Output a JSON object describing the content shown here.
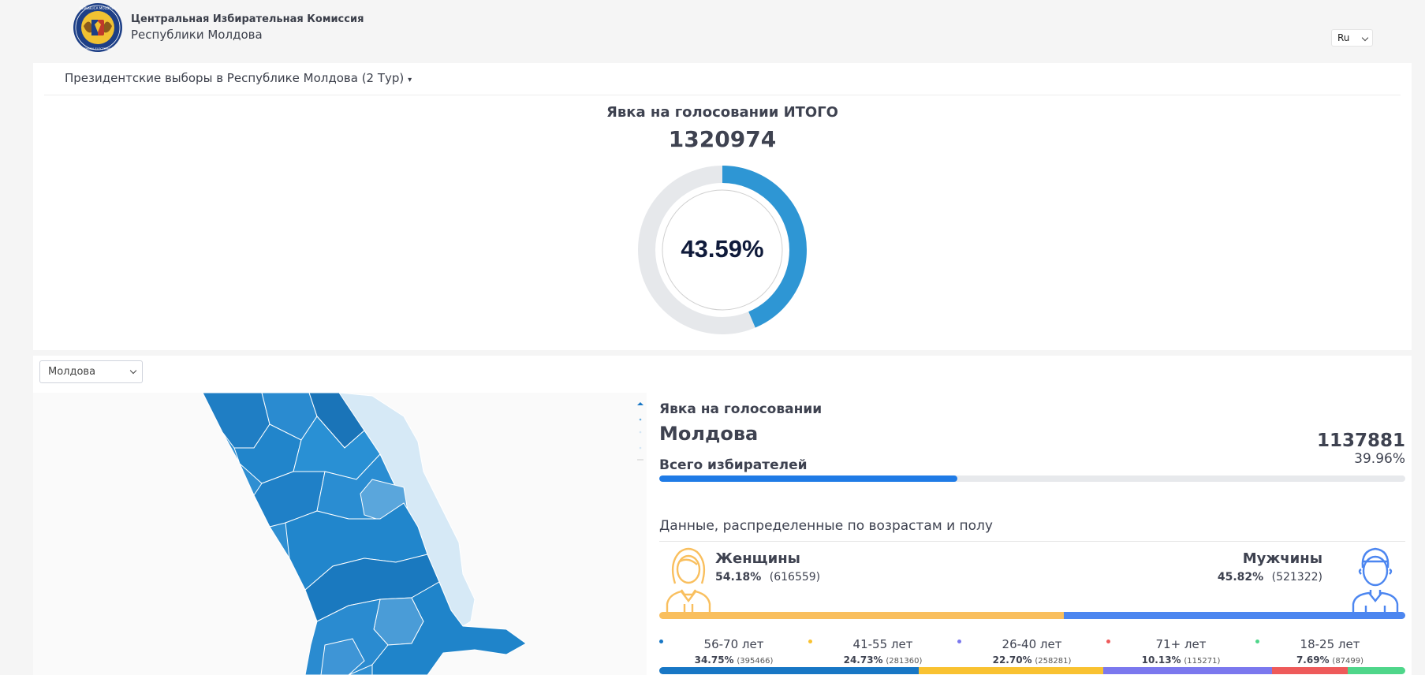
{
  "header": {
    "org_line1": "Центральная Избирательная Комиссия",
    "org_line2": "Республики Молдова",
    "logo_text": "REPUBLICA MOLDOVA · COMISIA ELECTORALĂ CENTRALĂ",
    "language": "Ru"
  },
  "election": {
    "title": "Президентские выборы в Республике Молдова (2 Тур)"
  },
  "total_turnout": {
    "title": "Явка на голосовании ИТОГО",
    "count": "1320974",
    "percent_label": "43.59%",
    "percent": 43.59,
    "colors": {
      "fill": "#2e96d4",
      "track": "#e6e8eb"
    }
  },
  "region": {
    "selected": "Молдова",
    "turnout_title": "Явка на голосовании",
    "name": "Молдова",
    "count": "1137881",
    "percent_label": "39.96%",
    "voters_label": "Всего избирателей",
    "progress": 0.4
  },
  "demographics": {
    "title": "Данные, распределенные по возрастам и полу",
    "women": {
      "label": "Женщины",
      "pct": "54.18%",
      "count": "(616559)",
      "share": 54.18,
      "color": "#f9bf5e"
    },
    "men": {
      "label": "Мужчины",
      "pct": "45.82%",
      "count": "(521322)",
      "share": 45.82,
      "color": "#4c86f0"
    },
    "ages": [
      {
        "label": "56-70 лет",
        "pct": "34.75%",
        "count": "(395466)",
        "share": 34.75,
        "color": "#1877c5"
      },
      {
        "label": "41-55 лет",
        "pct": "24.73%",
        "count": "(281360)",
        "share": 24.73,
        "color": "#f9c231"
      },
      {
        "label": "26-40 лет",
        "pct": "22.70%",
        "count": "(258281)",
        "share": 22.7,
        "color": "#7b78ee"
      },
      {
        "label": "71+ лет",
        "pct": "10.13%",
        "count": "(115271)",
        "share": 10.13,
        "color": "#ee5a5a"
      },
      {
        "label": "18-25 лет",
        "pct": "7.69%",
        "count": "(87499)",
        "share": 7.69,
        "color": "#4fd68a"
      }
    ]
  }
}
